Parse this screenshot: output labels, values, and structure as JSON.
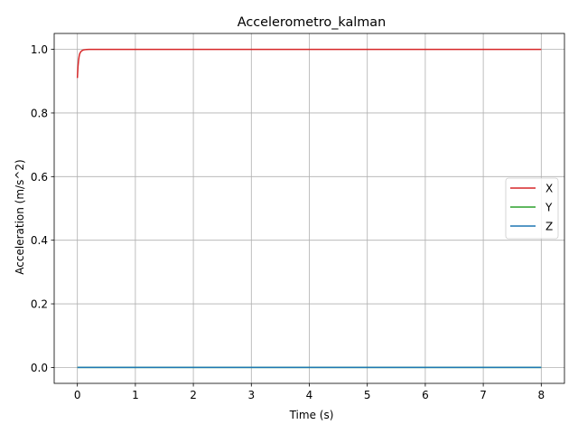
{
  "chart_data": {
    "type": "line",
    "title": "Accelerometro_kalman",
    "xlabel": "Time (s)",
    "ylabel": "Acceleration (m/s^2)",
    "xlim": [
      -0.4,
      8.4
    ],
    "ylim": [
      -0.05,
      1.05
    ],
    "xticks": [
      0,
      1,
      2,
      3,
      4,
      5,
      6,
      7,
      8
    ],
    "yticks": [
      0.0,
      0.2,
      0.4,
      0.6,
      0.8,
      1.0
    ],
    "ytick_labels": [
      "0.0",
      "0.2",
      "0.4",
      "0.6",
      "0.8",
      "1.0"
    ],
    "grid": true,
    "legend_position": "center-right",
    "series": [
      {
        "name": "X",
        "color": "#d62728",
        "x": [
          0,
          0.01,
          0.02,
          0.03,
          0.04,
          0.06,
          0.08,
          0.1,
          0.13,
          0.16,
          0.2,
          0.3,
          0.5,
          1,
          2,
          3,
          4,
          5,
          6,
          7,
          8
        ],
        "y": [
          0.91,
          0.945,
          0.965,
          0.978,
          0.986,
          0.993,
          0.996,
          0.998,
          0.999,
          0.9995,
          1.0,
          1.0,
          1.0,
          1.0,
          1.0,
          1.0,
          1.0,
          1.0,
          1.0,
          1.0,
          1.0
        ]
      },
      {
        "name": "Y",
        "color": "#2ca02c",
        "x": [
          0,
          8
        ],
        "y": [
          0.0,
          0.0
        ]
      },
      {
        "name": "Z",
        "color": "#1f77b4",
        "x": [
          0,
          8
        ],
        "y": [
          0.0,
          0.0
        ]
      }
    ]
  }
}
